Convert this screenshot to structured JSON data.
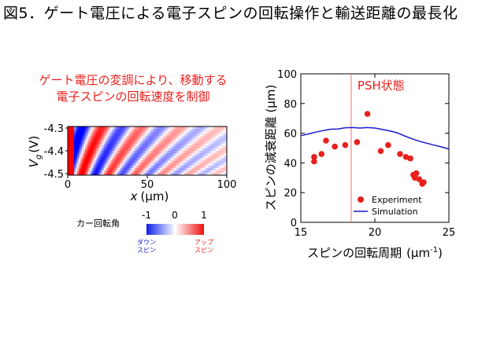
{
  "figure": {
    "title": "図5．ゲート電圧による電子スピンの回転操作と輸送距離の最長化",
    "caption_line1": "ゲート電圧の変調により、移動する",
    "caption_line2": "電子スピンの回転速度を制御"
  },
  "colors": {
    "red": "#e8201c",
    "blue": "#1a1acc",
    "map_red": "#f01010",
    "map_blue": "#1020e8",
    "psh_line": "#f07070"
  },
  "heatmap": {
    "ylabel": "V",
    "ylabel_sub": "g",
    "ylabel_unit": "(V)",
    "xlabel": "x",
    "xlabel_unit": "(μm)",
    "x_range": [
      0,
      100
    ],
    "y_range": [
      -4.5,
      -4.3
    ],
    "x_ticks": [
      "0",
      "50",
      "100"
    ],
    "y_ticks": [
      "-4.3",
      "-4.4",
      "-4.5"
    ]
  },
  "colorbar": {
    "title": "カー回転角",
    "ticks": [
      "-1",
      "0",
      "1"
    ],
    "left_label_line1": "ダウン",
    "left_label_line2": "スピン",
    "right_label_line1": "アップ",
    "right_label_line2": "スピン"
  },
  "chart_data": {
    "type": "scatter",
    "xlabel": "スピンの回転周期",
    "xlabel_unit": "(μm",
    "xlabel_sup": "-1",
    "xlabel_close": ")",
    "ylabel": "スピンの減衰距離 (μm)",
    "xlim": [
      15,
      25
    ],
    "ylim": [
      0,
      100
    ],
    "x_ticks": [
      "15",
      "20",
      "25"
    ],
    "y_ticks": [
      "0",
      "20",
      "40",
      "60",
      "80",
      "100"
    ],
    "annotation": "PSH状態",
    "psh_x": 18.4,
    "legend_position": "bottom-right",
    "series": [
      {
        "name": "Experiment",
        "kind": "points",
        "points": [
          [
            15.9,
            41
          ],
          [
            15.9,
            44
          ],
          [
            16.4,
            46
          ],
          [
            16.7,
            55
          ],
          [
            17.3,
            51
          ],
          [
            18.0,
            52
          ],
          [
            18.8,
            54
          ],
          [
            19.5,
            73
          ],
          [
            20.4,
            48
          ],
          [
            20.9,
            52
          ],
          [
            21.7,
            46
          ],
          [
            22.1,
            44
          ],
          [
            22.4,
            43
          ],
          [
            22.6,
            32
          ],
          [
            22.7,
            30
          ],
          [
            22.8,
            33
          ],
          [
            23.0,
            29
          ],
          [
            23.2,
            26
          ],
          [
            23.3,
            27
          ]
        ]
      },
      {
        "name": "Simulation",
        "kind": "line",
        "points": [
          [
            15.0,
            58.3
          ],
          [
            15.5,
            59.5
          ],
          [
            16.0,
            60.7
          ],
          [
            16.5,
            61.8
          ],
          [
            17.0,
            62.7
          ],
          [
            17.5,
            62.8
          ],
          [
            18.0,
            63.7
          ],
          [
            18.5,
            63.8
          ],
          [
            19.0,
            63.5
          ],
          [
            19.5,
            63.8
          ],
          [
            20.0,
            63.5
          ],
          [
            20.5,
            62.6
          ],
          [
            21.0,
            61.6
          ],
          [
            21.5,
            60.3
          ],
          [
            22.0,
            58.2
          ],
          [
            22.5,
            56.3
          ],
          [
            23.0,
            54.6
          ],
          [
            23.5,
            53.3
          ],
          [
            24.0,
            52.0
          ],
          [
            24.5,
            50.8
          ],
          [
            25.0,
            49.4
          ]
        ]
      }
    ]
  }
}
